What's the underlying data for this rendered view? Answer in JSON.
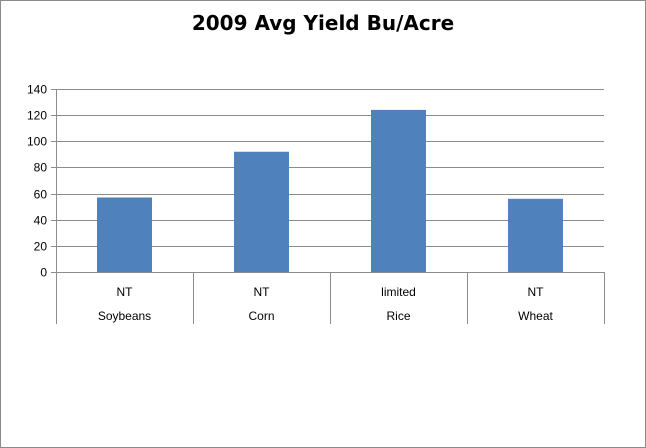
{
  "chart_data": {
    "type": "bar",
    "title": "2009 Avg Yield Bu/Acre",
    "xlabel": "",
    "ylabel": "",
    "ylim": [
      0,
      140
    ],
    "yticks": [
      0,
      20,
      40,
      60,
      80,
      100,
      120,
      140
    ],
    "grid": true,
    "legend": "none",
    "bar_color": "#4F81BD",
    "categories": [
      {
        "crop": "Soybeans",
        "practice": "NT"
      },
      {
        "crop": "Corn",
        "practice": "NT"
      },
      {
        "crop": "Rice",
        "practice": "limited"
      },
      {
        "crop": "Wheat",
        "practice": "NT"
      }
    ],
    "values": [
      57,
      92,
      124,
      56
    ]
  }
}
